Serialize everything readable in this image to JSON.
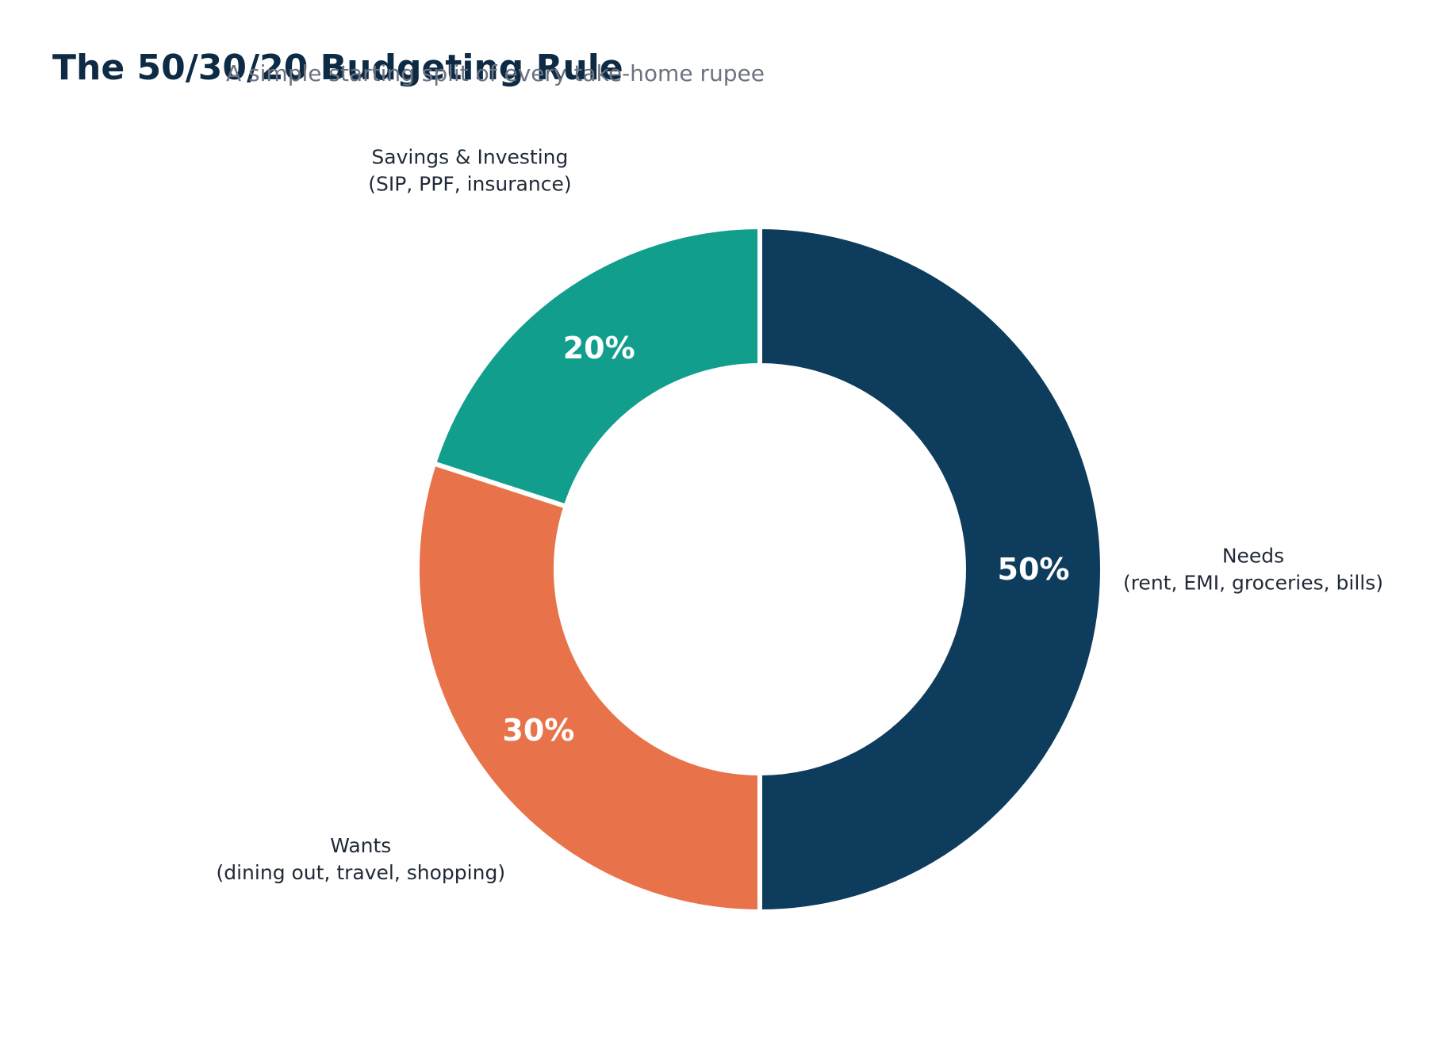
{
  "chart_data": {
    "type": "pie",
    "variant": "donut",
    "title": "The 50/30/20 Budgeting Rule",
    "subtitle": "A simple starting split of every take-home rupee",
    "start_angle": "12 o'clock",
    "direction": "clockwise",
    "slices": [
      {
        "name": "Needs",
        "detail": "(rent, EMI, groceries, bills)",
        "value": 50,
        "value_label": "50%",
        "color": "#0d3c5c"
      },
      {
        "name": "Wants",
        "detail": "(dining out, travel, shopping)",
        "value": 30,
        "value_label": "30%",
        "color": "#e8734b"
      },
      {
        "name": "Savings & Investing",
        "detail": "(SIP, PPF, insurance)",
        "value": 20,
        "value_label": "20%",
        "color": "#129e8c"
      }
    ]
  }
}
